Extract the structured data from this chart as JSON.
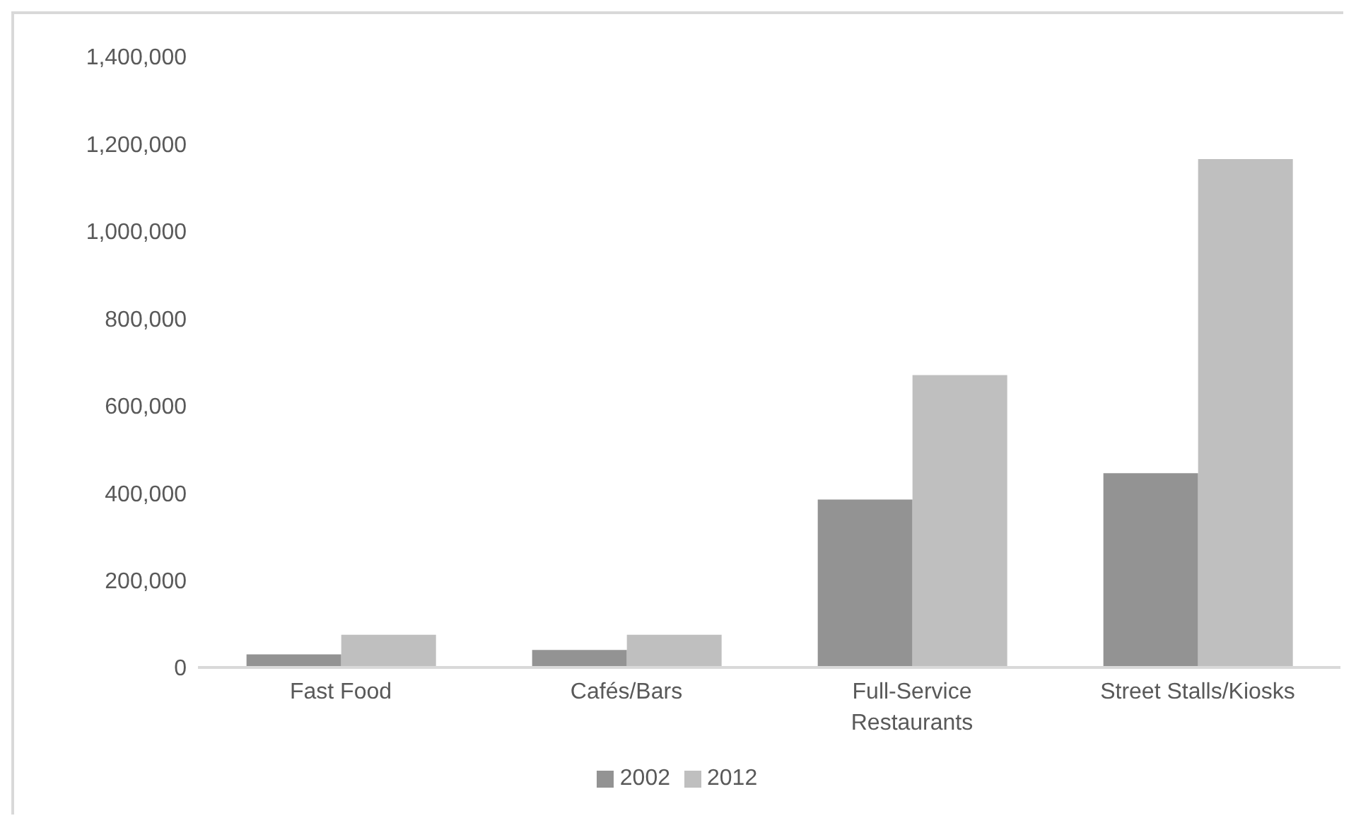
{
  "chart_data": {
    "type": "bar",
    "categories": [
      "Fast Food",
      "Cafés/Bars",
      "Full-Service Restaurants",
      "Street Stalls/Kiosks"
    ],
    "series": [
      {
        "name": "2002",
        "color": "#939393",
        "values": [
          30000,
          40000,
          385000,
          445000
        ]
      },
      {
        "name": "2012",
        "color": "#bfbfbf",
        "values": [
          75000,
          75000,
          670000,
          1165000
        ]
      }
    ],
    "ylim": [
      0,
      1400000
    ],
    "yticks": [
      0,
      {
        "value": 200000,
        "label": "200,000"
      },
      {
        "value": 400000,
        "label": "400,000"
      },
      {
        "value": 600000,
        "label": "600,000"
      },
      {
        "value": 800000,
        "label": "800,000"
      },
      {
        "value": 1000000,
        "label": "1,000,000"
      },
      {
        "value": 1200000,
        "label": "1,200,000"
      },
      {
        "value": 1400000,
        "label": "1,400,000"
      }
    ],
    "grid": false,
    "legend": "bottom"
  }
}
